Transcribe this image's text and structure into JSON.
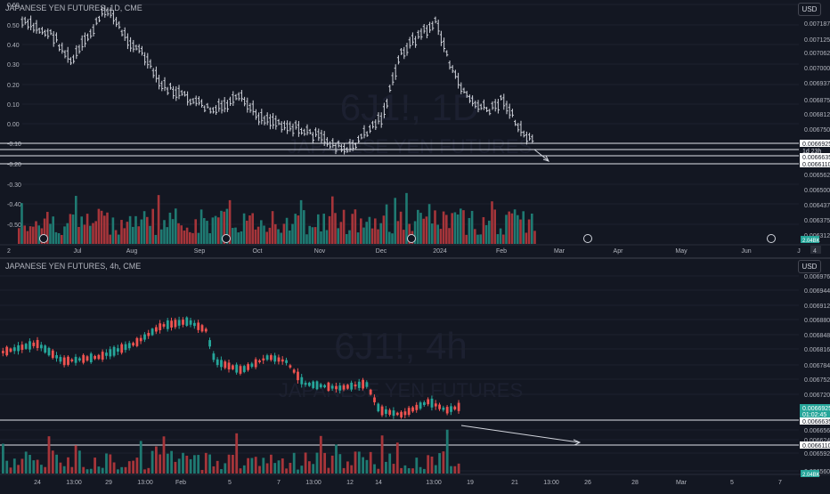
{
  "colors": {
    "bg": "#131722",
    "grid": "#1e222d",
    "up": "#26a69a",
    "down": "#ef5350",
    "text": "#b2b5be",
    "line": "#d1d4dc",
    "hline": "#e0e3eb"
  },
  "top": {
    "legend": "JAPANESE YEN FUTURES, 1D, CME",
    "watermark": "6J1!, 1D",
    "watermark_sub": "JAPANESE YEN FUTURES",
    "currency": "USD",
    "left_axis": [
      "0.60",
      "0.50",
      "0.40",
      "0.30",
      "0.20",
      "0.10",
      "0.00",
      "-0.10",
      "-0.20",
      "-0.30",
      "-0.40",
      "-0.50"
    ],
    "right_axis": [
      "0.0071875",
      "0.0071250",
      "0.0070625",
      "0.0070000",
      "0.0069375",
      "0.0068750",
      "0.0068125",
      "0.0067500",
      "0.0066875",
      "0.0065625",
      "0.0065000",
      "0.0064375",
      "0.0063750",
      "0.0063125"
    ],
    "price_labels": [
      "0.0066925",
      "1d 23h",
      "0.0066635",
      "0.0066110"
    ],
    "time_axis": [
      "Jul",
      "Aug",
      "Sep",
      "Oct",
      "Nov",
      "Dec",
      "2024",
      "Feb",
      "Mar",
      "Apr",
      "May",
      "Jun"
    ],
    "axis_edge_left": "2",
    "axis_edge_right": "J",
    "badge": "2.04BK",
    "badge_small": "4"
  },
  "bottom": {
    "legend": "JAPANESE YEN FUTURES, 4h, CME",
    "watermark": "6J1!, 4h",
    "watermark_sub": "JAPANESE YEN FUTURES",
    "currency": "USD",
    "right_axis": [
      "0.0069760",
      "0.0069440",
      "0.0069120",
      "0.0068800",
      "0.0068480",
      "0.0068160",
      "0.0067840",
      "0.0067520",
      "0.0067200",
      "0.0066560",
      "0.0066240",
      "0.0065920",
      "0.0065600"
    ],
    "price_labels": [
      "0.0066925",
      "01:02:45",
      "0.0066635",
      "0.0066110"
    ],
    "time_axis": [
      "24",
      "13:00",
      "29",
      "13:00",
      "Feb",
      "5",
      "7",
      "13:00",
      "12",
      "14",
      "13:00",
      "19",
      "21",
      "13:00",
      "26",
      "28",
      "Mar",
      "5",
      "7"
    ],
    "badge": "2.04BK"
  }
}
